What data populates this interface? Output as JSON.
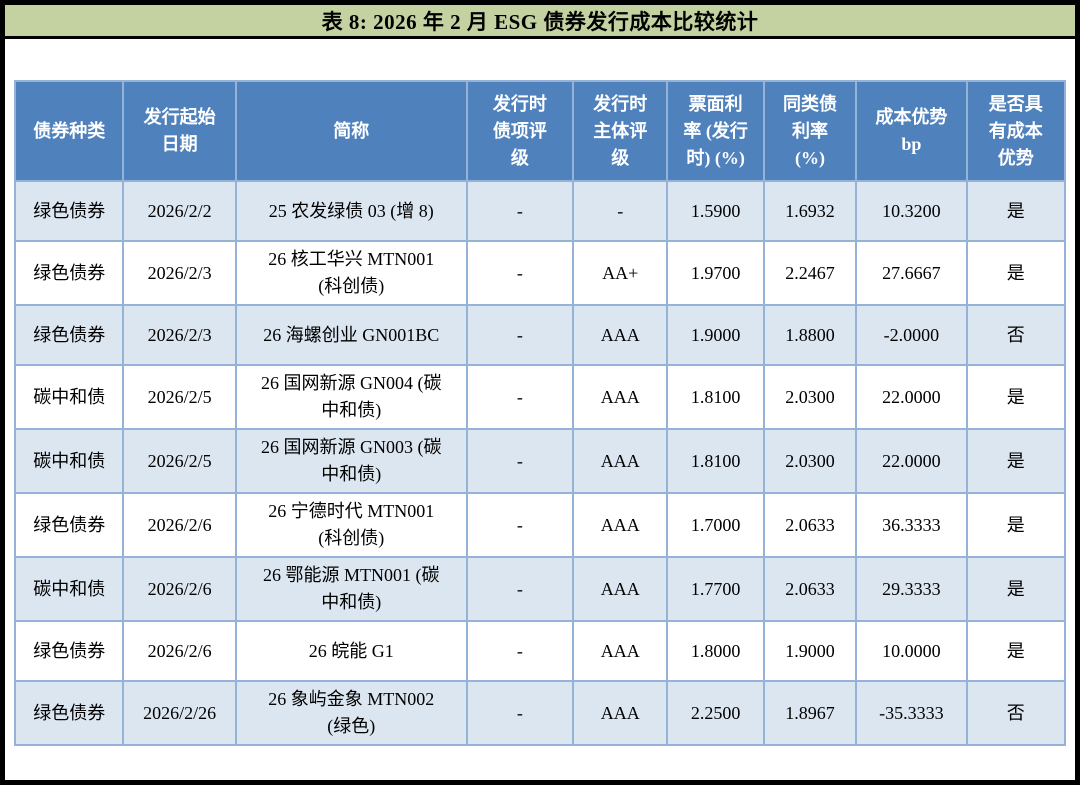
{
  "title_bar": {
    "text": "表 8: 2026 年 2 月 ESG 债券发行成本比较统计"
  },
  "colors": {
    "title_bar_bg": "#c3d2a0",
    "header_bg": "#4f81bd",
    "header_text": "#ffffff",
    "banded_row_bg": "#dce6f1",
    "plain_row_bg": "#ffffff",
    "grid_border": "#95b3d7",
    "frame_border": "#000000"
  },
  "table": {
    "columns": [
      {
        "key": "bond-type",
        "label_lines": [
          "债券种类"
        ]
      },
      {
        "key": "issue-start-date",
        "label_lines": [
          "发行起始",
          "日期"
        ]
      },
      {
        "key": "short-name",
        "label_lines": [
          "简称"
        ]
      },
      {
        "key": "bond-rating-at-issue",
        "label_lines": [
          "发行时",
          "债项评",
          "级"
        ]
      },
      {
        "key": "issuer-rating-at-issue",
        "label_lines": [
          "发行时",
          "主体评",
          "级"
        ]
      },
      {
        "key": "coupon-rate-at-issue",
        "label_lines": [
          "票面利",
          "率 (发行",
          "时) (%)"
        ]
      },
      {
        "key": "peer-bond-rate",
        "label_lines": [
          "同类债",
          "利率",
          "(%)"
        ]
      },
      {
        "key": "cost-advantage-bp",
        "label_lines": [
          "成本优势",
          "bp"
        ]
      },
      {
        "key": "has-cost-advantage",
        "label_lines": [
          "是否具",
          "有成本",
          "优势"
        ]
      }
    ],
    "rows": [
      [
        "绿色债券",
        "2026/2/2",
        "25 农发绿债 03 (增 8)",
        "-",
        "-",
        "1.5900",
        "1.6932",
        "10.3200",
        "是"
      ],
      [
        "绿色债券",
        "2026/2/3",
        "26 核工华兴 MTN001\n(科创债)",
        "-",
        "AA+",
        "1.9700",
        "2.2467",
        "27.6667",
        "是"
      ],
      [
        "绿色债券",
        "2026/2/3",
        "26 海螺创业 GN001BC",
        "-",
        "AAA",
        "1.9000",
        "1.8800",
        "-2.0000",
        "否"
      ],
      [
        "碳中和债",
        "2026/2/5",
        "26 国网新源 GN004 (碳\n中和债)",
        "-",
        "AAA",
        "1.8100",
        "2.0300",
        "22.0000",
        "是"
      ],
      [
        "碳中和债",
        "2026/2/5",
        "26 国网新源 GN003 (碳\n中和债)",
        "-",
        "AAA",
        "1.8100",
        "2.0300",
        "22.0000",
        "是"
      ],
      [
        "绿色债券",
        "2026/2/6",
        "26 宁德时代 MTN001\n(科创债)",
        "-",
        "AAA",
        "1.7000",
        "2.0633",
        "36.3333",
        "是"
      ],
      [
        "碳中和债",
        "2026/2/6",
        "26 鄂能源 MTN001 (碳\n中和债)",
        "-",
        "AAA",
        "1.7700",
        "2.0633",
        "29.3333",
        "是"
      ],
      [
        "绿色债券",
        "2026/2/6",
        "26 皖能 G1",
        "-",
        "AAA",
        "1.8000",
        "1.9000",
        "10.0000",
        "是"
      ],
      [
        "绿色债券",
        "2026/2/26",
        "26 象屿金象 MTN002\n(绿色)",
        "-",
        "AAA",
        "2.2500",
        "1.8967",
        "-35.3333",
        "否"
      ]
    ]
  }
}
